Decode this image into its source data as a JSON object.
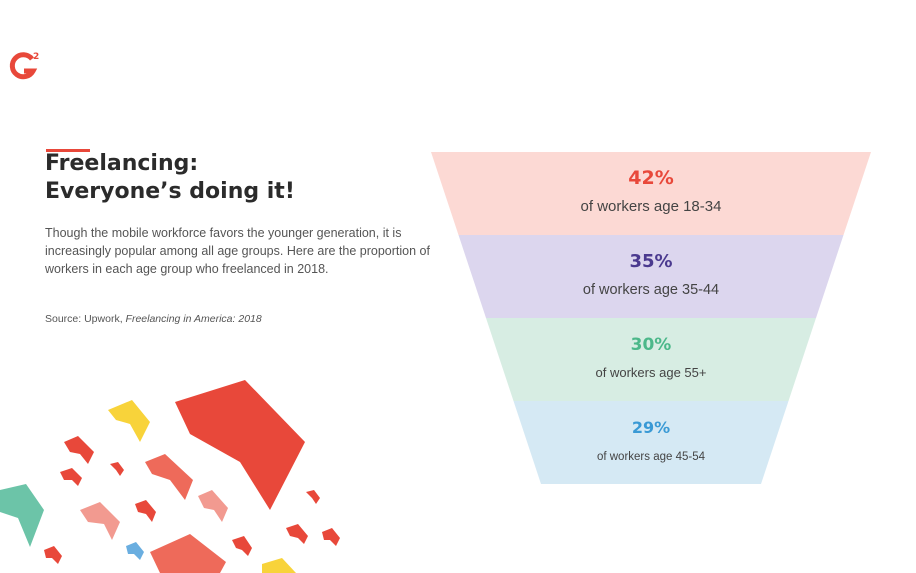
{
  "brand": {
    "logo_text": "G2",
    "logo_color": "#e8483a"
  },
  "header": {
    "title_line1": "Freelancing:",
    "title_line2": "Everyone’s doing it!",
    "description": "Though the mobile workforce favors the younger generation, it is increasingly popular among all age groups. Here are the proportion of workers in each age group who freelanced in 2018.",
    "source_prefix": "Source: Upwork, ",
    "source_title": "Freelancing in America: 2018"
  },
  "chart_data": {
    "type": "funnel",
    "categories": [
      "of workers age 18-34",
      "of workers age 35-44",
      "of workers age 55+",
      "of workers age 45-54"
    ],
    "values": [
      42,
      35,
      30,
      29
    ],
    "value_labels": [
      "42%",
      "35%",
      "30%",
      "29%"
    ],
    "fill_colors": [
      "#fcd9d4",
      "#dcd6ee",
      "#d7ede3",
      "#d5e9f4"
    ],
    "text_colors": [
      "#e8483a",
      "#4b3a8f",
      "#4cb88a",
      "#3a9ad5"
    ]
  }
}
